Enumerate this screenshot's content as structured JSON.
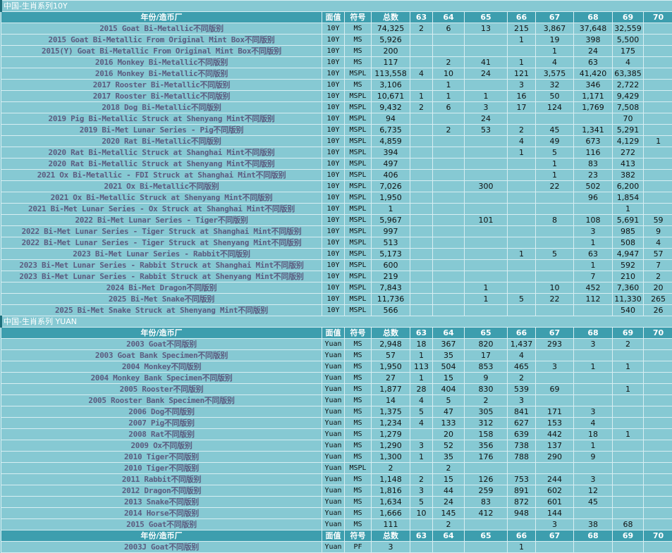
{
  "sections": [
    {
      "title": "中国-生肖系列10Y",
      "header": [
        "年份/造币厂",
        "面值",
        "符号",
        "总数",
        "63",
        "64",
        "65",
        "66",
        "67",
        "68",
        "69",
        "70"
      ],
      "rows": [
        [
          "2015 Goat Bi-Metallic不同版别",
          "10Y",
          "MS",
          "74,325",
          "2",
          "6",
          "13",
          "215",
          "3,867",
          "37,648",
          "32,559",
          null
        ],
        [
          "2015 Goat Bi-Metallic From Original Mint Box不同版别",
          "10Y",
          "MS",
          "5,926",
          null,
          null,
          null,
          "1",
          "19",
          "398",
          "5,500",
          null
        ],
        [
          "2015(Y) Goat Bi-Metallic From Original Mint Box不同版别",
          "10Y",
          "MS",
          "200",
          null,
          null,
          null,
          null,
          "1",
          "24",
          "175",
          null
        ],
        [
          "2016 Monkey Bi-Metallic不同版别",
          "10Y",
          "MS",
          "117",
          null,
          "2",
          "41",
          "1",
          "4",
          "63",
          "4",
          null
        ],
        [
          "2016 Monkey Bi-Metallic不同版别",
          "10Y",
          "MSPL",
          "113,558",
          "4",
          "10",
          "24",
          "121",
          "3,575",
          "41,420",
          "63,385",
          null
        ],
        [
          "2017 Rooster Bi-Metallic不同版别",
          "10Y",
          "MS",
          "3,106",
          null,
          "1",
          null,
          "3",
          "32",
          "346",
          "2,722",
          null
        ],
        [
          "2017 Rooster Bi-Metallic不同版别",
          "10Y",
          "MSPL",
          "10,671",
          "1",
          "1",
          "1",
          "16",
          "50",
          "1,171",
          "9,429",
          null
        ],
        [
          "2018 Dog Bi-Metallic不同版别",
          "10Y",
          "MSPL",
          "9,432",
          "2",
          "6",
          "3",
          "17",
          "124",
          "1,769",
          "7,508",
          null
        ],
        [
          "2019 Pig Bi-Metallic Struck at Shenyang Mint不同版别",
          "10Y",
          "MSPL",
          "94",
          null,
          null,
          "24",
          null,
          null,
          null,
          "70",
          null
        ],
        [
          "2019 Bi-Met Lunar Series - Pig不同版别",
          "10Y",
          "MSPL",
          "6,735",
          null,
          "2",
          "53",
          "2",
          "45",
          "1,341",
          "5,291",
          null
        ],
        [
          "2020 Rat Bi-Metallic不同版别",
          "10Y",
          "MSPL",
          "4,859",
          null,
          null,
          null,
          "4",
          "49",
          "673",
          "4,129",
          "1"
        ],
        [
          "2020 Rat Bi-Metallic Struck at Shanghai Mint不同版别",
          "10Y",
          "MSPL",
          "394",
          null,
          null,
          null,
          "1",
          "5",
          "116",
          "272",
          null
        ],
        [
          "2020 Rat Bi-Metallic Struck at Shenyang Mint不同版别",
          "10Y",
          "MSPL",
          "497",
          null,
          null,
          null,
          null,
          "1",
          "83",
          "413",
          null
        ],
        [
          "2021 Ox Bi-Metallic - FDI Struck at Shanghai Mint不同版别",
          "10Y",
          "MSPL",
          "406",
          null,
          null,
          null,
          null,
          "1",
          "23",
          "382",
          null
        ],
        [
          "2021 Ox Bi-Metallic不同版别",
          "10Y",
          "MSPL",
          "7,026",
          null,
          null,
          "300",
          null,
          "22",
          "502",
          "6,200",
          null
        ],
        [
          "2021 Ox Bi-Metallic Struck at Shenyang Mint不同版别",
          "10Y",
          "MSPL",
          "1,950",
          null,
          null,
          null,
          null,
          null,
          "96",
          "1,854",
          null
        ],
        [
          "2021 Bi-Met Lunar Series - Ox Struck at Shanghai Mint不同版别",
          "10Y",
          "MSPL",
          "1",
          null,
          null,
          null,
          null,
          null,
          null,
          "1",
          null
        ],
        [
          "2022 Bi-Met Lunar Series - Tiger不同版别",
          "10Y",
          "MSPL",
          "5,967",
          null,
          null,
          "101",
          null,
          "8",
          "108",
          "5,691",
          "59"
        ],
        [
          "2022 Bi-Met Lunar Series - Tiger Struck at Shanghai Mint不同版别",
          "10Y",
          "MSPL",
          "997",
          null,
          null,
          null,
          null,
          null,
          "3",
          "985",
          "9"
        ],
        [
          "2022 Bi-Met Lunar Series - Tiger Struck at Shenyang Mint不同版别",
          "10Y",
          "MSPL",
          "513",
          null,
          null,
          null,
          null,
          null,
          "1",
          "508",
          "4"
        ],
        [
          "2023 Bi-Met Lunar Series - Rabbit不同版别",
          "10Y",
          "MSPL",
          "5,173",
          null,
          null,
          null,
          "1",
          "5",
          "63",
          "4,947",
          "57"
        ],
        [
          "2023 Bi-Met Lunar Series - Rabbit Struck at Shanghai Mint不同版别",
          "10Y",
          "MSPL",
          "600",
          null,
          null,
          null,
          null,
          null,
          "1",
          "592",
          "7"
        ],
        [
          "2023 Bi-Met Lunar Series - Rabbit Struck at Shenyang Mint不同版别",
          "10Y",
          "MSPL",
          "219",
          null,
          null,
          null,
          null,
          null,
          "7",
          "210",
          "2"
        ],
        [
          "2024 Bi-Met Dragon不同版别",
          "10Y",
          "MSPL",
          "7,843",
          null,
          null,
          "1",
          null,
          "10",
          "452",
          "7,360",
          "20"
        ],
        [
          "2025 Bi-Met Snake不同版别",
          "10Y",
          "MSPL",
          "11,736",
          null,
          null,
          "1",
          "5",
          "22",
          "112",
          "11,330",
          "265"
        ],
        [
          "2025 Bi-Met Snake Struck at Shenyang Mint不同版别",
          "10Y",
          "MSPL",
          "566",
          null,
          null,
          null,
          null,
          null,
          null,
          "540",
          "26"
        ]
      ]
    },
    {
      "title": "中国-生肖系列 YUAN",
      "header": [
        "年份/造币厂",
        "面值",
        "符号",
        "总数",
        "63",
        "64",
        "65",
        "66",
        "67",
        "68",
        "69",
        "70"
      ],
      "rows": [
        [
          "2003 Goat不同版别",
          "Yuan",
          "MS",
          "2,948",
          "18",
          "367",
          "820",
          "1,437",
          "293",
          "3",
          "2",
          null
        ],
        [
          "2003 Goat Bank Specimen不同版别",
          "Yuan",
          "MS",
          "57",
          "1",
          "35",
          "17",
          "4",
          null,
          null,
          null,
          null
        ],
        [
          "2004 Monkey不同版别",
          "Yuan",
          "MS",
          "1,950",
          "113",
          "504",
          "853",
          "465",
          "3",
          "1",
          "1",
          null
        ],
        [
          "2004 Monkey Bank Specimen不同版别",
          "Yuan",
          "MS",
          "27",
          "1",
          "15",
          "9",
          "2",
          null,
          null,
          null,
          null
        ],
        [
          "2005 Rooster不同版别",
          "Yuan",
          "MS",
          "1,877",
          "28",
          "404",
          "830",
          "539",
          "69",
          null,
          "1",
          null
        ],
        [
          "2005 Rooster Bank Specimen不同版别",
          "Yuan",
          "MS",
          "14",
          "4",
          "5",
          "2",
          "3",
          null,
          null,
          null,
          null
        ],
        [
          "2006 Dog不同版别",
          "Yuan",
          "MS",
          "1,375",
          "5",
          "47",
          "305",
          "841",
          "171",
          "3",
          null,
          null
        ],
        [
          "2007 Pig不同版别",
          "Yuan",
          "MS",
          "1,234",
          "4",
          "133",
          "312",
          "627",
          "153",
          "4",
          null,
          null
        ],
        [
          "2008 Rat不同版别",
          "Yuan",
          "MS",
          "1,279",
          null,
          "20",
          "158",
          "639",
          "442",
          "18",
          "1",
          null
        ],
        [
          "2009 Ox不同版别",
          "Yuan",
          "MS",
          "1,290",
          "3",
          "52",
          "356",
          "738",
          "137",
          "1",
          null,
          null
        ],
        [
          "2010 Tiger不同版别",
          "Yuan",
          "MS",
          "1,300",
          "1",
          "35",
          "176",
          "788",
          "290",
          "9",
          null,
          null
        ],
        [
          "2010 Tiger不同版别",
          "Yuan",
          "MSPL",
          "2",
          null,
          "2",
          null,
          null,
          null,
          null,
          null,
          null
        ],
        [
          "2011 Rabbit不同版别",
          "Yuan",
          "MS",
          "1,148",
          "2",
          "15",
          "126",
          "753",
          "244",
          "3",
          null,
          null
        ],
        [
          "2012 Dragon不同版别",
          "Yuan",
          "MS",
          "1,816",
          "3",
          "44",
          "259",
          "891",
          "602",
          "12",
          null,
          null
        ],
        [
          "2013 Snake不同版别",
          "Yuan",
          "MS",
          "1,634",
          "5",
          "24",
          "83",
          "872",
          "601",
          "45",
          null,
          null
        ],
        [
          "2014 Horse不同版别",
          "Yuan",
          "MS",
          "1,666",
          "10",
          "145",
          "412",
          "948",
          "144",
          null,
          null,
          null
        ],
        [
          "2015 Goat不同版别",
          "Yuan",
          "MS",
          "111",
          null,
          "2",
          null,
          null,
          "3",
          "38",
          "68",
          null
        ]
      ]
    },
    {
      "header": [
        "年份/造币厂",
        "面值",
        "符号",
        "总数",
        "63",
        "64",
        "65",
        "66",
        "67",
        "68",
        "69",
        "70"
      ],
      "rows": [
        [
          "2003J Goat不同版别",
          "Yuan",
          "PF",
          "3",
          null,
          null,
          null,
          "1",
          null,
          null,
          null,
          null
        ]
      ]
    }
  ]
}
